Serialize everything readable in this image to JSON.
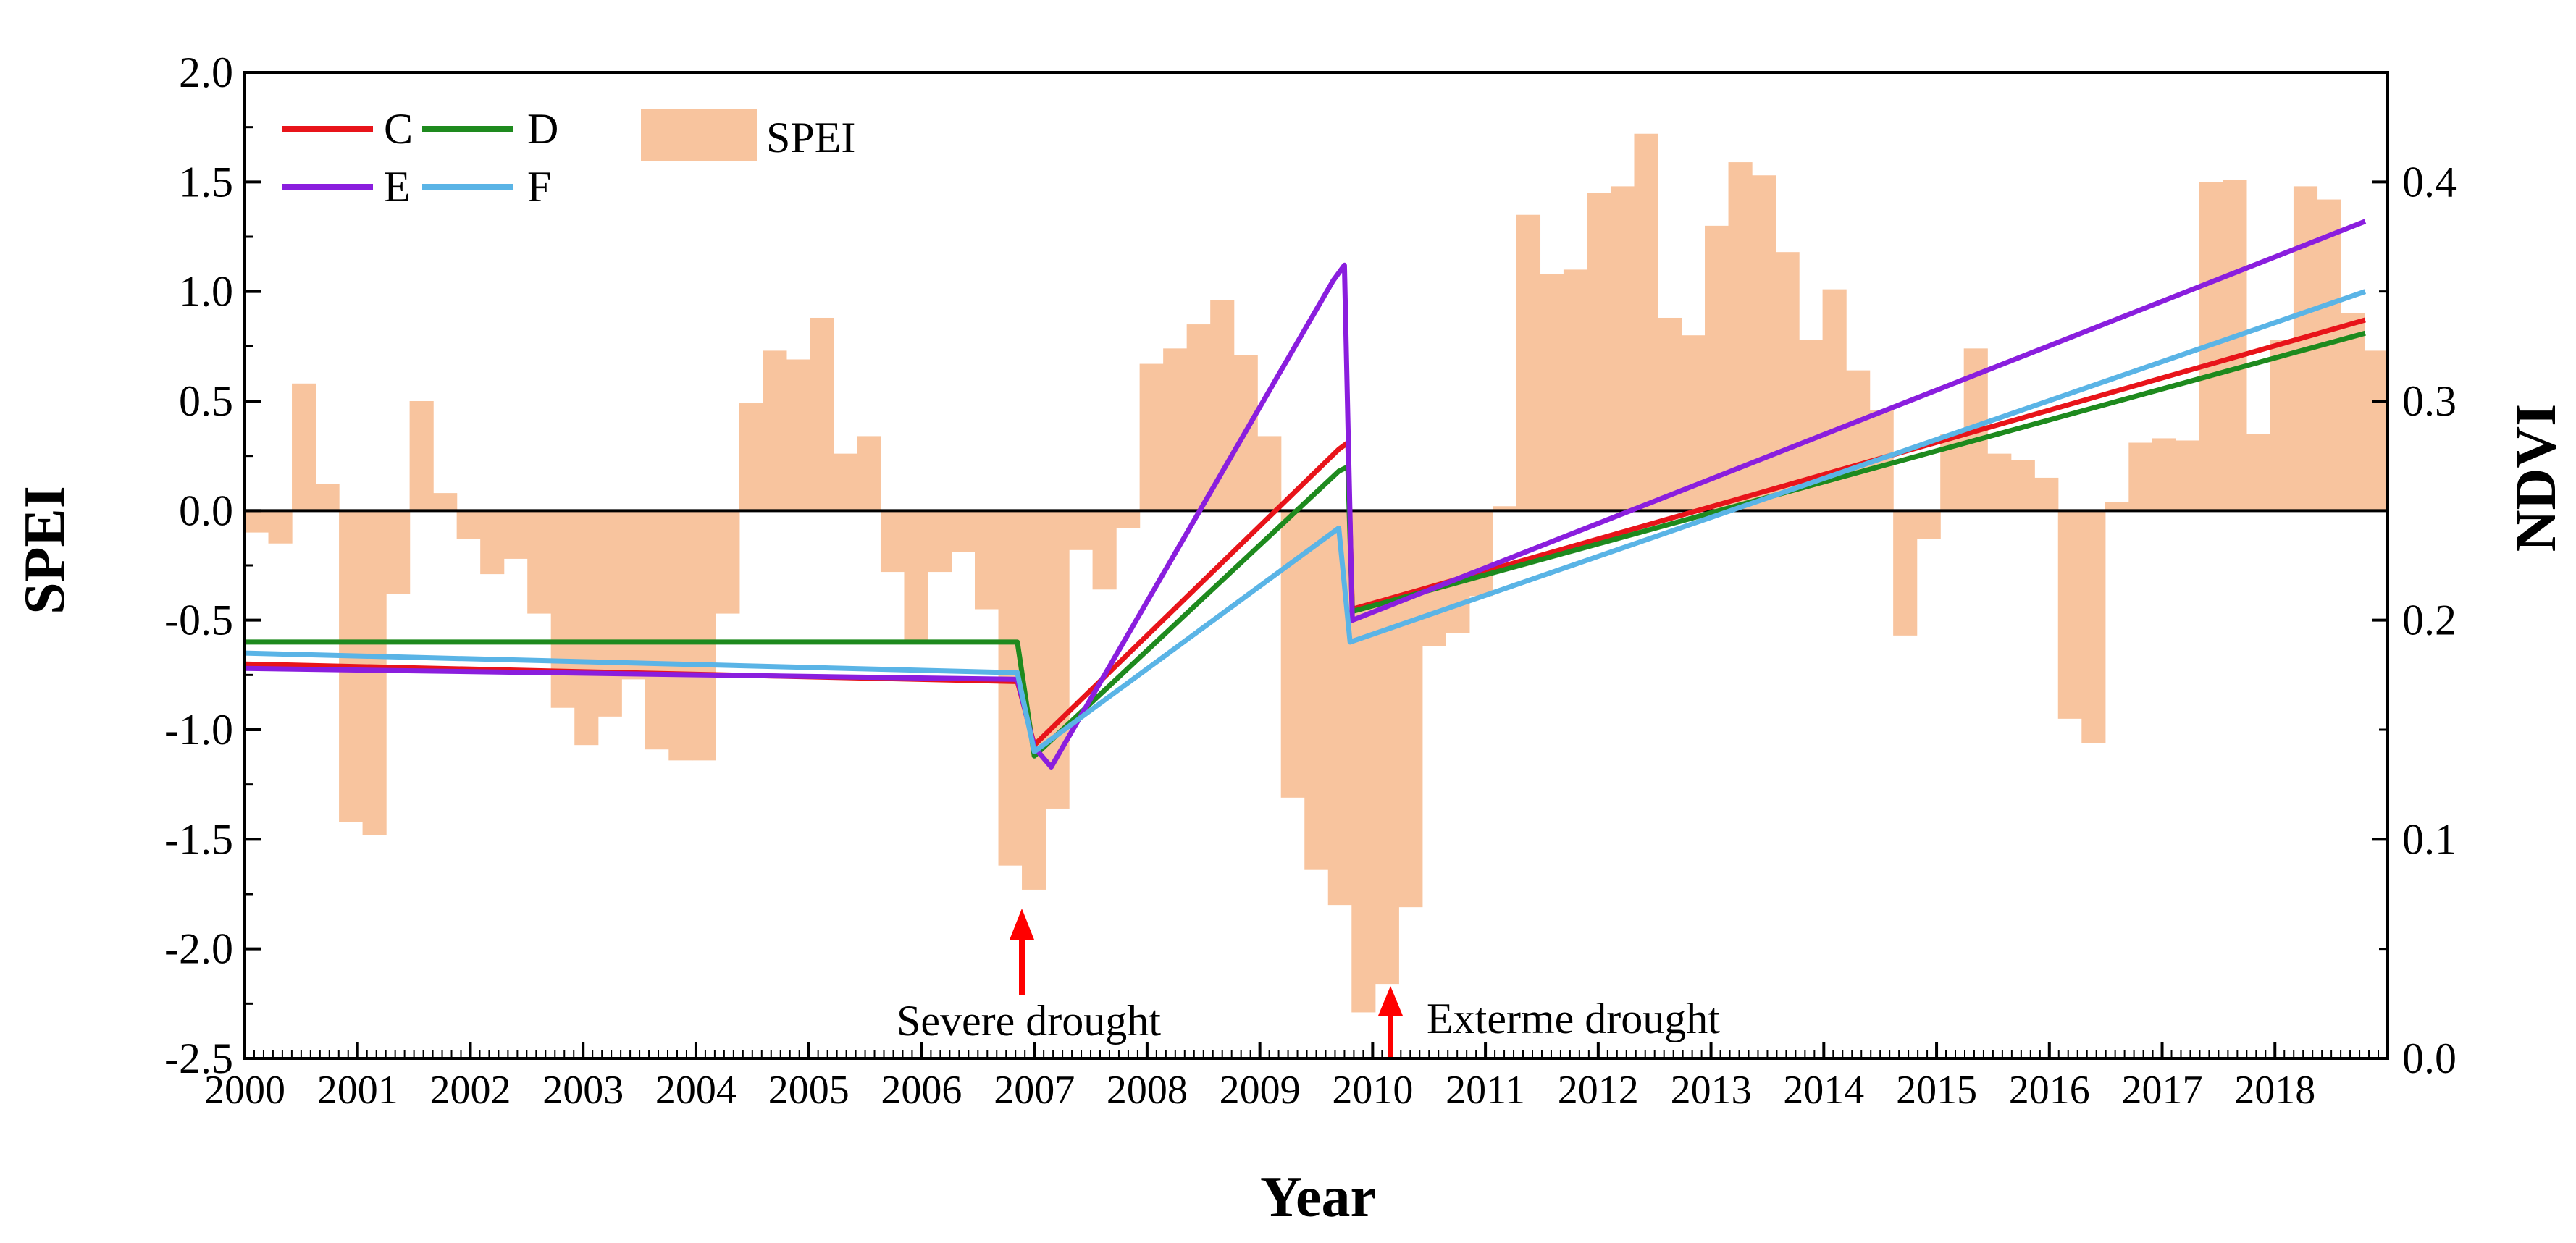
{
  "chart_data": {
    "type": "bar+line",
    "xlabel": "Year",
    "ylabel_left": "SPEI",
    "ylabel_right": "NDVI",
    "ylim_left": [
      -2.5,
      2.0
    ],
    "ylim_right": [
      0.0,
      0.45
    ],
    "yticks_left": [
      "2.0",
      "1.5",
      "1.0",
      "0.5",
      "0.0",
      "-0.5",
      "-1.0",
      "-1.5",
      "-2.0",
      "-2.5"
    ],
    "yticks_right": [
      "0.4",
      "0.3",
      "0.2",
      "0.1",
      "0.0"
    ],
    "years": [
      "2000",
      "2001",
      "2002",
      "2003",
      "2004",
      "2005",
      "2006",
      "2007",
      "2008",
      "2009",
      "2010",
      "2011",
      "2012",
      "2013",
      "2014",
      "2015",
      "2016",
      "2017",
      "2018"
    ],
    "spei": {
      "name": "SPEI",
      "color": "#f8c49e",
      "values": [
        -0.1,
        -0.15,
        0.58,
        0.12,
        -1.42,
        -1.48,
        -0.38,
        0.5,
        0.08,
        -0.13,
        -0.29,
        -0.22,
        -0.47,
        -0.9,
        -1.07,
        -0.94,
        -0.77,
        -1.09,
        -1.14,
        -1.14,
        -0.47,
        0.49,
        0.73,
        0.69,
        0.88,
        0.26,
        0.34,
        -0.28,
        -0.59,
        -0.28,
        -0.19,
        -0.45,
        -1.62,
        -1.73,
        -1.36,
        -0.18,
        -0.36,
        -0.08,
        0.67,
        0.74,
        0.85,
        0.96,
        0.71,
        0.34,
        -1.31,
        -1.64,
        -1.8,
        -2.29,
        -2.16,
        -1.81,
        -0.62,
        -0.56,
        -0.39,
        0.02,
        1.35,
        1.08,
        1.1,
        1.45,
        1.48,
        1.72,
        0.88,
        0.8,
        1.3,
        1.59,
        1.53,
        1.18,
        0.78,
        1.01,
        0.64,
        0.46,
        -0.57,
        -0.13,
        0.35,
        0.74,
        0.26,
        0.23,
        0.15,
        -0.95,
        -1.06,
        0.04,
        0.31,
        0.33,
        0.32,
        1.5,
        1.51,
        0.35,
        0.78,
        1.48,
        1.42,
        0.9,
        0.73
      ]
    },
    "series": [
      {
        "name": "C",
        "color": "#e8141a",
        "x": [
          0,
          6.85,
          7.0,
          9.7,
          9.78,
          9.82,
          18.8
        ],
        "values": [
          0.18,
          0.172,
          0.143,
          0.278,
          0.281,
          0.205,
          0.337
        ]
      },
      {
        "name": "D",
        "color": "#1e8a1e",
        "x": [
          0,
          6.85,
          7.0,
          9.7,
          9.78,
          9.82,
          18.8
        ],
        "values": [
          0.19,
          0.19,
          0.138,
          0.268,
          0.27,
          0.204,
          0.331
        ]
      },
      {
        "name": "E",
        "color": "#8a1ede",
        "x": [
          0,
          6.85,
          7.0,
          7.15,
          9.65,
          9.75,
          9.82,
          18.8
        ],
        "values": [
          0.178,
          0.173,
          0.142,
          0.133,
          0.355,
          0.362,
          0.2,
          0.382
        ]
      },
      {
        "name": "F",
        "color": "#5ab4e6",
        "x": [
          0,
          6.85,
          7.0,
          9.7,
          9.8,
          18.8
        ],
        "values": [
          0.185,
          0.176,
          0.14,
          0.242,
          0.19,
          0.35
        ]
      }
    ],
    "legend": [
      "C",
      "D",
      "E",
      "F",
      "SPEI"
    ],
    "annotations": [
      {
        "text": "Severe drought",
        "x": 6.9
      },
      {
        "text": "Exterme drought",
        "x": 10.05
      }
    ]
  }
}
